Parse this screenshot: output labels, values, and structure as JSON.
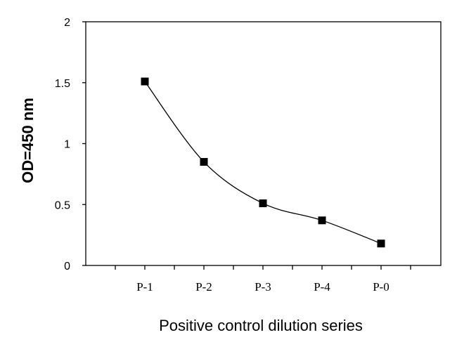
{
  "chart_data": {
    "type": "line",
    "categories": [
      "P-1",
      "P-2",
      "P-3",
      "P-4",
      "P-0"
    ],
    "values": [
      1.51,
      0.85,
      0.51,
      0.37,
      0.18
    ],
    "title": "",
    "xlabel": "Positive control dilution series",
    "ylabel": "OD=450 nm",
    "ylim": [
      0,
      2
    ],
    "yticks": [
      "0",
      "0.5",
      "1",
      "1.5",
      "2"
    ],
    "grid": false,
    "legend": "none",
    "line_color": "#000000",
    "marker": "square"
  }
}
